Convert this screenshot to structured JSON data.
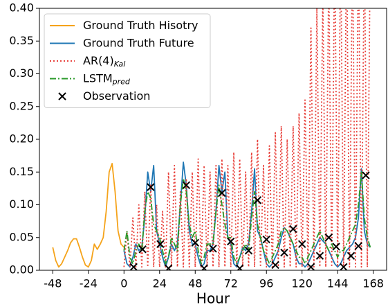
{
  "chart_data": {
    "type": "line",
    "x_label": "Hour",
    "xlim": [
      -57,
      177
    ],
    "ylim": [
      0,
      0.4
    ],
    "xticks": [
      -48,
      -24,
      0,
      24,
      48,
      72,
      96,
      120,
      144,
      168
    ],
    "yticks": [
      {
        "value": 0,
        "label": "0.00"
      },
      {
        "value": 0.05,
        "label": "0.05"
      },
      {
        "value": 0.1,
        "label": "0.10"
      },
      {
        "value": 0.15,
        "label": "0.15"
      },
      {
        "value": 0.2,
        "label": "0.20"
      },
      {
        "value": 0.25,
        "label": "0.25"
      },
      {
        "value": 0.3,
        "label": "0.30"
      },
      {
        "value": 0.35,
        "label": "0.35"
      },
      {
        "value": 0.4,
        "label": "0.40"
      }
    ],
    "legend": "upper left",
    "series": [
      {
        "name": "Ground Truth Hisotry",
        "color": "#f5a31a",
        "linestyle": "solid",
        "x": [
          -48,
          -46,
          -44,
          -42,
          -40,
          -38,
          -36,
          -34,
          -32,
          -30,
          -28,
          -26,
          -24,
          -22,
          -20,
          -18,
          -16,
          -14,
          -12,
          -10,
          -8,
          -6,
          -4,
          -2,
          0
        ],
        "values": [
          0.035,
          0.015,
          0.005,
          0.01,
          0.02,
          0.03,
          0.042,
          0.048,
          0.048,
          0.035,
          0.02,
          0.008,
          0.005,
          0.015,
          0.04,
          0.032,
          0.04,
          0.05,
          0.09,
          0.15,
          0.163,
          0.12,
          0.06,
          0.04,
          0.035
        ]
      },
      {
        "name": "Ground Truth Future",
        "color": "#1f77b4",
        "linestyle": "solid",
        "x": [
          0,
          2,
          4,
          6,
          8,
          10,
          12,
          14,
          16,
          18,
          20,
          22,
          24,
          26,
          28,
          30,
          32,
          34,
          36,
          38,
          40,
          42,
          44,
          46,
          48,
          50,
          52,
          54,
          56,
          58,
          60,
          62,
          64,
          66,
          68,
          70,
          72,
          74,
          76,
          78,
          80,
          82,
          84,
          86,
          88,
          90,
          92,
          94,
          96,
          98,
          100,
          102,
          104,
          106,
          108,
          110,
          112,
          114,
          116,
          118,
          120,
          122,
          124,
          126,
          128,
          130,
          132,
          134,
          136,
          138,
          140,
          142,
          144,
          146,
          148,
          150,
          152,
          154,
          156,
          158,
          160,
          162,
          164,
          166
        ],
        "values": [
          0.03,
          0.01,
          0.005,
          0.02,
          0.04,
          0.03,
          0.035,
          0.08,
          0.15,
          0.12,
          0.16,
          0.06,
          0.04,
          0.02,
          0.005,
          0.02,
          0.04,
          0.03,
          0.04,
          0.1,
          0.165,
          0.13,
          0.06,
          0.04,
          0.04,
          0.02,
          0.005,
          0.01,
          0.03,
          0.03,
          0.04,
          0.09,
          0.16,
          0.12,
          0.15,
          0.05,
          0.04,
          0.01,
          0.005,
          0.02,
          0.035,
          0.03,
          0.04,
          0.09,
          0.155,
          0.06,
          0.05,
          0.03,
          0.01,
          0.005,
          0.01,
          0.02,
          0.03,
          0.05,
          0.065,
          0.06,
          0.05,
          0.04,
          0.02,
          0.01,
          0.01,
          0.005,
          0.01,
          0.02,
          0.03,
          0.04,
          0.05,
          0.045,
          0.04,
          0.03,
          0.02,
          0.01,
          0.005,
          0.01,
          0.02,
          0.03,
          0.035,
          0.04,
          0.05,
          0.08,
          0.155,
          0.06,
          0.04,
          0.035
        ]
      },
      {
        "name": "AR(4)",
        "name_subscript": "Kal",
        "color": "#e8413b",
        "linestyle": "dotted",
        "x": [
          0,
          2,
          4,
          6,
          8,
          10,
          12,
          14,
          16,
          18,
          20,
          22,
          24,
          26,
          28,
          30,
          32,
          34,
          36,
          38,
          40,
          42,
          44,
          46,
          48,
          50,
          52,
          54,
          56,
          58,
          60,
          62,
          64,
          66,
          68,
          70,
          72,
          74,
          76,
          78,
          80,
          82,
          84,
          86,
          88,
          90,
          92,
          94,
          96,
          98,
          100,
          102,
          104,
          106,
          108,
          110,
          112,
          114,
          116,
          118,
          120,
          122,
          124,
          126,
          128,
          130,
          132,
          134,
          136,
          138,
          140,
          142,
          144,
          146,
          148,
          150,
          152,
          154,
          156,
          158,
          160,
          162,
          164,
          166
        ],
        "values": [
          0.005,
          0.06,
          0.005,
          0.08,
          0.005,
          0.1,
          0.005,
          0.12,
          0.005,
          0.13,
          0.005,
          0.1,
          0.005,
          0.09,
          0.005,
          0.15,
          0.005,
          0.16,
          0.005,
          0.12,
          0.005,
          0.14,
          0.005,
          0.15,
          0.005,
          0.17,
          0.005,
          0.16,
          0.005,
          0.15,
          0.005,
          0.16,
          0.005,
          0.17,
          0.005,
          0.16,
          0.005,
          0.18,
          0.005,
          0.17,
          0.005,
          0.15,
          0.005,
          0.18,
          0.005,
          0.2,
          0.005,
          0.16,
          0.005,
          0.19,
          0.005,
          0.21,
          0.005,
          0.22,
          0.005,
          0.2,
          0.005,
          0.22,
          0.005,
          0.24,
          0.005,
          0.26,
          0.005,
          0.37,
          0.005,
          0.4,
          0.005,
          0.42,
          0.005,
          0.45,
          0.005,
          0.5,
          0.005,
          0.5,
          0.005,
          0.5,
          0.005,
          0.5,
          0.005,
          0.5,
          0.005,
          0.5,
          0.005,
          0.5
        ]
      },
      {
        "name": "LSTM",
        "name_subscript": "pred",
        "color": "#2a9a2a",
        "linestyle": "dashdot",
        "x": [
          0,
          2,
          4,
          6,
          8,
          10,
          12,
          14,
          16,
          18,
          20,
          22,
          24,
          26,
          28,
          30,
          32,
          34,
          36,
          38,
          40,
          42,
          44,
          46,
          48,
          50,
          52,
          54,
          56,
          58,
          60,
          62,
          64,
          66,
          68,
          70,
          72,
          74,
          76,
          78,
          80,
          82,
          84,
          86,
          88,
          90,
          92,
          94,
          96,
          98,
          100,
          102,
          104,
          106,
          108,
          110,
          112,
          114,
          116,
          118,
          120,
          122,
          124,
          126,
          128,
          130,
          132,
          134,
          136,
          138,
          140,
          142,
          144,
          146,
          148,
          150,
          152,
          154,
          156,
          158,
          160,
          162,
          164,
          166
        ],
        "values": [
          0.03,
          0.06,
          0.02,
          0.01,
          0.03,
          0.04,
          0.03,
          0.09,
          0.12,
          0.11,
          0.07,
          0.06,
          0.05,
          0.03,
          0.01,
          0.02,
          0.05,
          0.04,
          0.03,
          0.1,
          0.14,
          0.12,
          0.07,
          0.05,
          0.06,
          0.03,
          0.01,
          0.02,
          0.04,
          0.04,
          0.04,
          0.09,
          0.13,
          0.1,
          0.07,
          0.05,
          0.05,
          0.02,
          0.01,
          0.02,
          0.03,
          0.04,
          0.03,
          0.08,
          0.12,
          0.07,
          0.05,
          0.03,
          0.02,
          0.01,
          0.02,
          0.03,
          0.04,
          0.06,
          0.065,
          0.06,
          0.05,
          0.04,
          0.03,
          0.02,
          0.02,
          0.01,
          0.02,
          0.03,
          0.04,
          0.05,
          0.06,
          0.05,
          0.04,
          0.03,
          0.04,
          0.03,
          0.02,
          0.03,
          0.03,
          0.04,
          0.05,
          0.06,
          0.07,
          0.1,
          0.15,
          0.08,
          0.05,
          0.035
        ]
      },
      {
        "name": "Observation",
        "color": "#000000",
        "marker": "x",
        "x": [
          6.5,
          12.5,
          18,
          24.5,
          30,
          42,
          48,
          54,
          60,
          66,
          72,
          78,
          84,
          90,
          96,
          102,
          108,
          114,
          120,
          126,
          132,
          138,
          143,
          148,
          153,
          158,
          163
        ],
        "values": [
          0.005,
          0.032,
          0.127,
          0.04,
          0.003,
          0.13,
          0.042,
          0.003,
          0.033,
          0.118,
          0.044,
          0.003,
          0.03,
          0.107,
          0.047,
          0.008,
          0.027,
          0.063,
          0.04,
          0.005,
          0.022,
          0.05,
          0.036,
          0.005,
          0.022,
          0.037,
          0.145
        ]
      }
    ]
  }
}
